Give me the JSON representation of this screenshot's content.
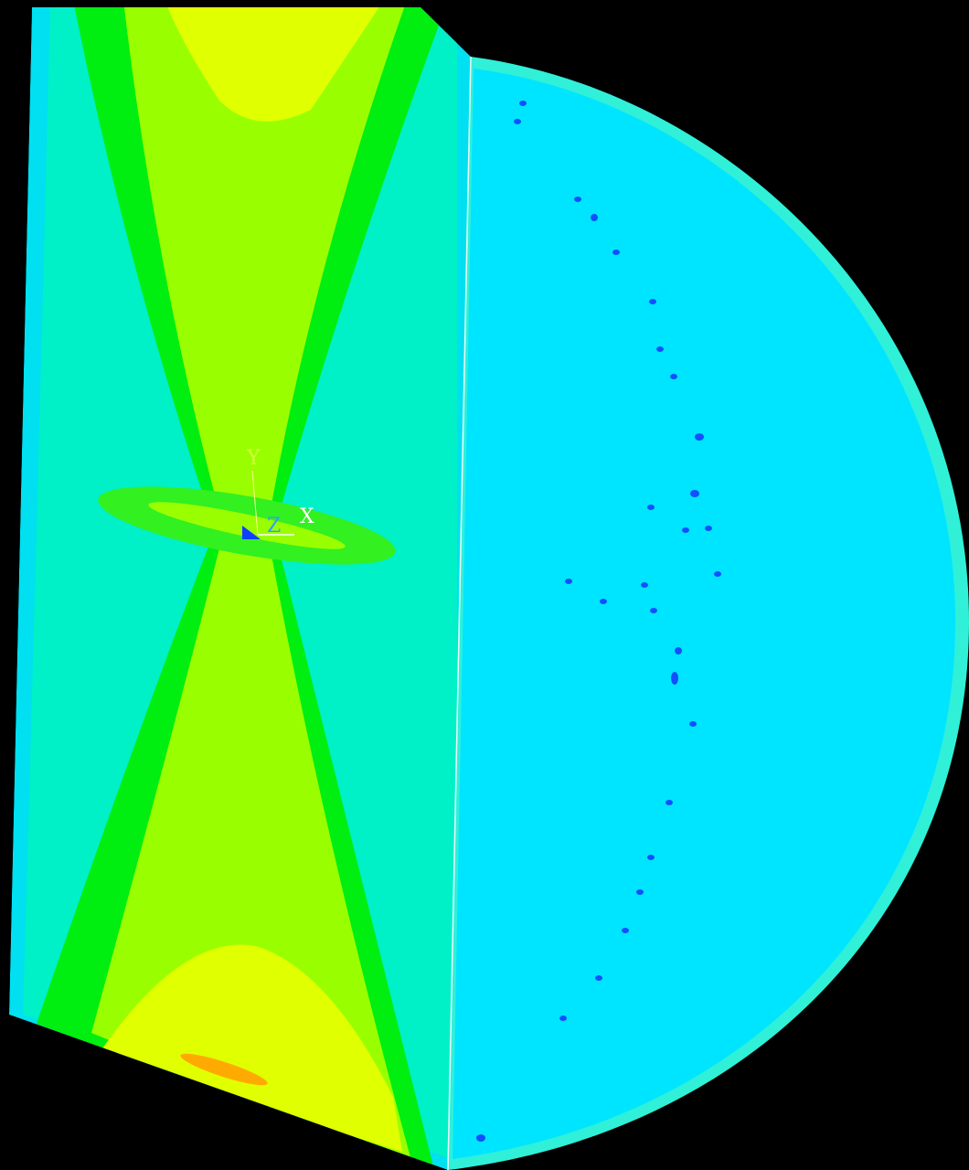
{
  "triad": {
    "x": "X",
    "y": "Y",
    "z": "Z"
  }
}
